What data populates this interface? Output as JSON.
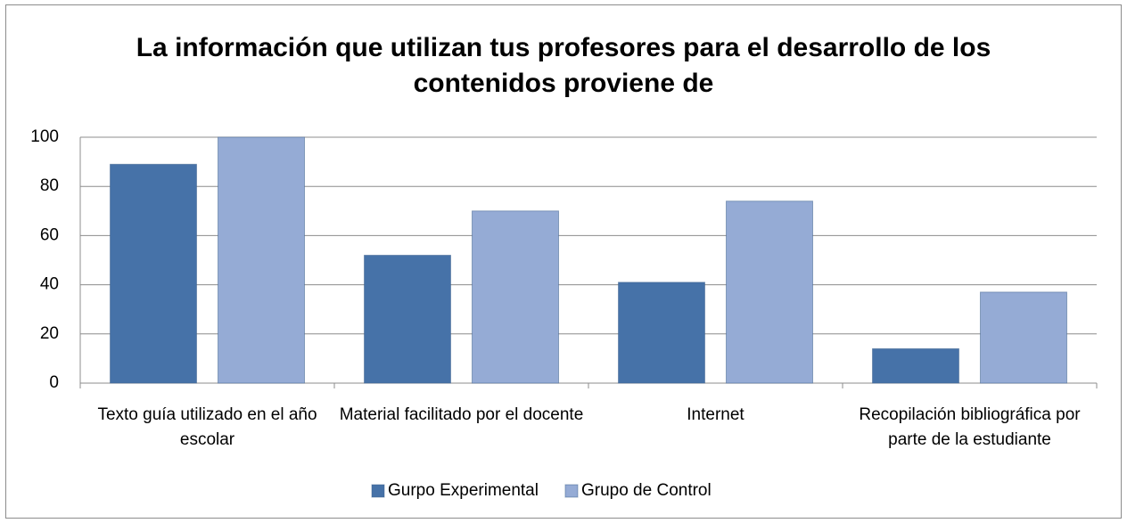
{
  "chart_data": {
    "type": "bar",
    "title": "La información que utilizan tus profesores para el desarrollo de los contenidos proviene de",
    "categories": [
      "Texto guía utilizado en el año escolar",
      "Material facilitado por el docente",
      "Internet",
      "Recopilación bibliográfica por parte de la estudiante"
    ],
    "series": [
      {
        "name": "Gurpo Experimental",
        "color": "#4672a8",
        "values": [
          89,
          52,
          41,
          14
        ]
      },
      {
        "name": "Grupo de Control",
        "color": "#95abd5",
        "values": [
          100,
          70,
          74,
          37
        ]
      }
    ],
    "ylim": [
      0,
      100
    ],
    "yticks": [
      0,
      20,
      40,
      60,
      80,
      100
    ],
    "grid": true,
    "legend": "bottom"
  }
}
